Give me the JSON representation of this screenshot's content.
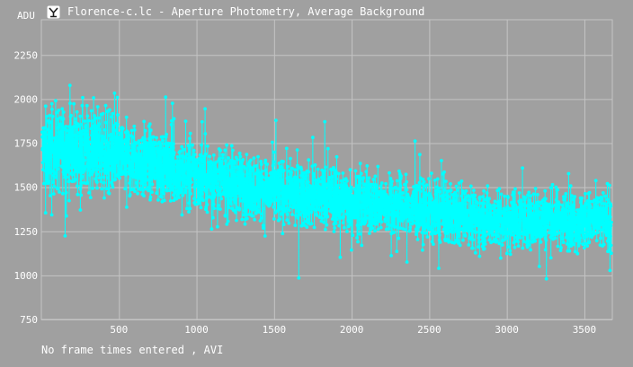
{
  "window": {
    "title": "Florence-c.lc - Aperture Photometry, Average Background",
    "footer": "No frame times entered , AVI"
  },
  "colors": {
    "background": "#a0a0a0",
    "grid": "#c4c4c4",
    "series": "#00ffff",
    "text": "#ffffff"
  },
  "icons": {
    "app": "app-logo-icon"
  },
  "chart_data": {
    "type": "line",
    "ylabel": "ADU",
    "xlim": [
      0,
      3680
    ],
    "ylim": [
      750,
      2450
    ],
    "xticks": [
      500,
      1000,
      1500,
      2000,
      2500,
      3000,
      3500
    ],
    "yticks": [
      750,
      1000,
      1250,
      1500,
      1750,
      2000,
      2250
    ],
    "grid": true,
    "markers": true,
    "series": [
      {
        "x": [
          0,
          184,
          368,
          552,
          736,
          920,
          1104,
          1288,
          1472,
          1656,
          1840,
          2024,
          2208,
          2392,
          2576,
          2760,
          2944,
          3128,
          3312,
          3496,
          3670
        ],
        "values": [
          1700,
          1720,
          1710,
          1660,
          1620,
          1580,
          1550,
          1510,
          1480,
          1460,
          1440,
          1420,
          1400,
          1380,
          1350,
          1330,
          1320,
          1320,
          1320,
          1310,
          1310
        ],
        "spread": [
          200,
          220,
          210,
          190,
          180,
          175,
          170,
          165,
          165,
          160,
          160,
          155,
          155,
          150,
          150,
          150,
          145,
          145,
          145,
          145,
          145
        ],
        "n_points": 3665
      }
    ]
  }
}
